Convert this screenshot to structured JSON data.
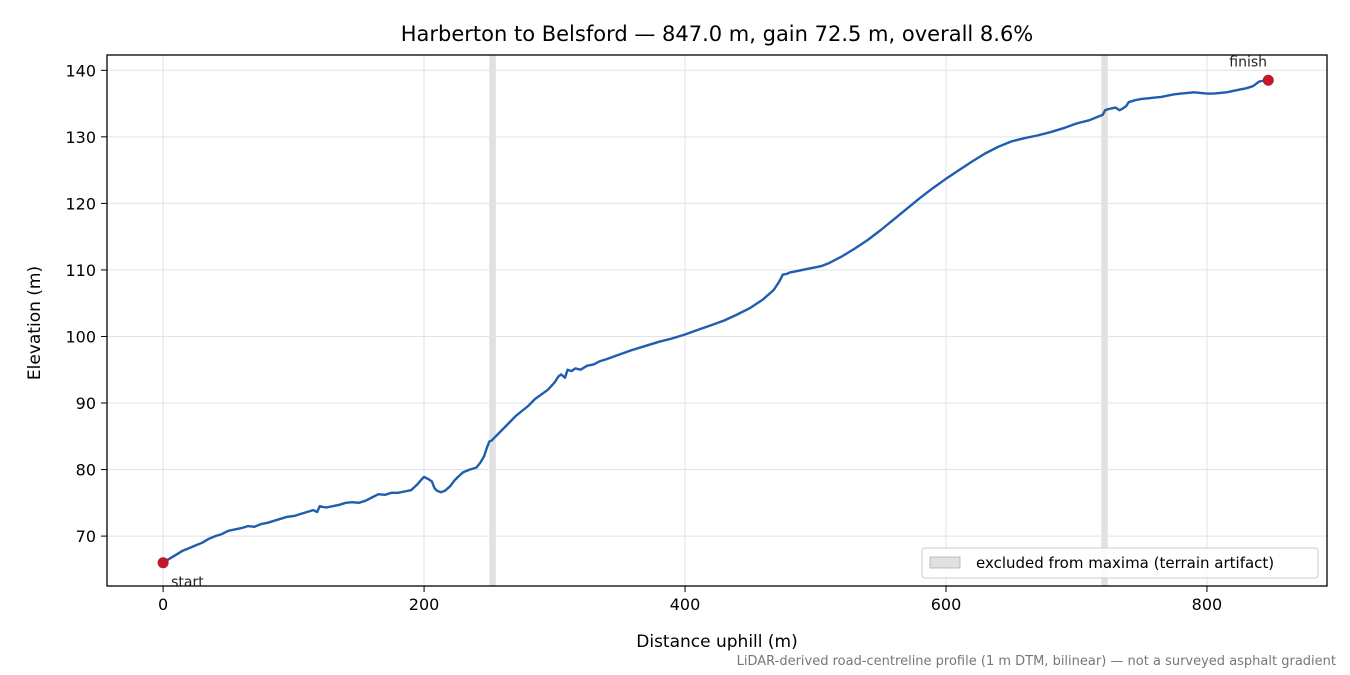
{
  "chart_data": {
    "type": "line",
    "title": "Harberton to Belsford — 847.0 m, gain 72.5 m, overall 8.6%",
    "xlabel": "Distance uphill (m)",
    "ylabel": "Elevation (m)",
    "xlim": [
      -43,
      892
    ],
    "ylim": [
      62.5,
      142.3
    ],
    "xticks": [
      0,
      200,
      400,
      600,
      800
    ],
    "yticks": [
      70,
      80,
      90,
      100,
      110,
      120,
      130,
      140
    ],
    "grid": true,
    "line_color": "#1f5eae",
    "marker_color": "#c0182a",
    "band_color": "#c8c8c8",
    "series": [
      {
        "x": [
          0,
          5,
          10,
          15,
          20,
          25,
          30,
          35,
          40,
          45,
          50,
          55,
          60,
          65,
          70,
          75,
          80,
          85,
          90,
          95,
          100,
          105,
          110,
          115,
          118,
          120,
          122,
          125,
          130,
          135,
          140,
          145,
          150,
          155,
          160,
          165,
          170,
          175,
          180,
          185,
          190,
          195,
          198,
          200,
          203,
          206,
          208,
          210,
          213,
          216,
          220,
          223,
          226,
          230,
          235,
          240,
          243,
          246,
          248,
          250,
          252,
          254,
          256,
          260,
          265,
          270,
          275,
          280,
          285,
          290,
          295,
          300,
          303,
          305,
          308,
          310,
          313,
          316,
          320,
          325,
          330,
          335,
          340,
          350,
          360,
          370,
          380,
          390,
          400,
          410,
          420,
          430,
          440,
          450,
          460,
          468,
          472,
          475,
          478,
          480,
          485,
          490,
          495,
          500,
          505,
          510,
          520,
          530,
          540,
          550,
          560,
          570,
          580,
          590,
          600,
          610,
          620,
          630,
          640,
          650,
          660,
          670,
          680,
          690,
          700,
          710,
          715,
          720,
          722,
          725,
          730,
          733,
          735,
          738,
          740,
          745,
          750,
          755,
          760,
          765,
          770,
          775,
          780,
          785,
          790,
          795,
          800,
          805,
          810,
          815,
          820,
          825,
          830,
          835,
          838,
          840,
          842,
          845,
          847
        ],
        "y": [
          66.0,
          66.6,
          67.2,
          67.8,
          68.2,
          68.6,
          69.0,
          69.6,
          70.0,
          70.3,
          70.8,
          71.0,
          71.2,
          71.5,
          71.4,
          71.8,
          72.0,
          72.3,
          72.6,
          72.9,
          73.0,
          73.3,
          73.6,
          73.9,
          73.6,
          74.5,
          74.4,
          74.3,
          74.5,
          74.7,
          75.0,
          75.1,
          75.0,
          75.3,
          75.8,
          76.3,
          76.2,
          76.5,
          76.5,
          76.7,
          76.9,
          77.8,
          78.5,
          78.9,
          78.6,
          78.2,
          77.2,
          76.8,
          76.6,
          76.8,
          77.5,
          78.3,
          78.9,
          79.6,
          80.0,
          80.3,
          81.0,
          82.0,
          83.2,
          84.2,
          84.4,
          84.8,
          85.2,
          86.0,
          87.0,
          88.0,
          88.8,
          89.6,
          90.6,
          91.3,
          92.0,
          93.1,
          94.0,
          94.3,
          93.8,
          95.0,
          94.8,
          95.2,
          95.0,
          95.6,
          95.8,
          96.3,
          96.6,
          97.3,
          98.0,
          98.6,
          99.2,
          99.7,
          100.3,
          101.0,
          101.7,
          102.4,
          103.3,
          104.3,
          105.6,
          107.0,
          108.2,
          109.3,
          109.4,
          109.6,
          109.8,
          110.0,
          110.2,
          110.4,
          110.6,
          111.0,
          112.0,
          113.2,
          114.5,
          116.0,
          117.6,
          119.2,
          120.8,
          122.3,
          123.7,
          125.0,
          126.3,
          127.5,
          128.5,
          129.3,
          129.8,
          130.2,
          130.7,
          131.3,
          132.0,
          132.5,
          132.9,
          133.3,
          134.0,
          134.2,
          134.4,
          134.0,
          134.2,
          134.6,
          135.2,
          135.5,
          135.7,
          135.8,
          135.9,
          136.0,
          136.2,
          136.4,
          136.5,
          136.6,
          136.7,
          136.6,
          136.5,
          136.5,
          136.6,
          136.7,
          136.9,
          137.1,
          137.3,
          137.6,
          138.0,
          138.3,
          138.4,
          138.5,
          138.5
        ]
      }
    ],
    "excluded_bands": [
      [
        250,
        255
      ],
      [
        719,
        724
      ]
    ],
    "legend": {
      "label": "excluded from maxima (terrain artifact)",
      "placement": "lower-right"
    },
    "annotations": [
      {
        "text": "start",
        "x": 0,
        "y": 66.0
      },
      {
        "text": "finish",
        "x": 847,
        "y": 138.5
      }
    ],
    "footnote": "LiDAR-derived road-centreline profile (1 m DTM, bilinear) — not a surveyed asphalt gradient"
  }
}
